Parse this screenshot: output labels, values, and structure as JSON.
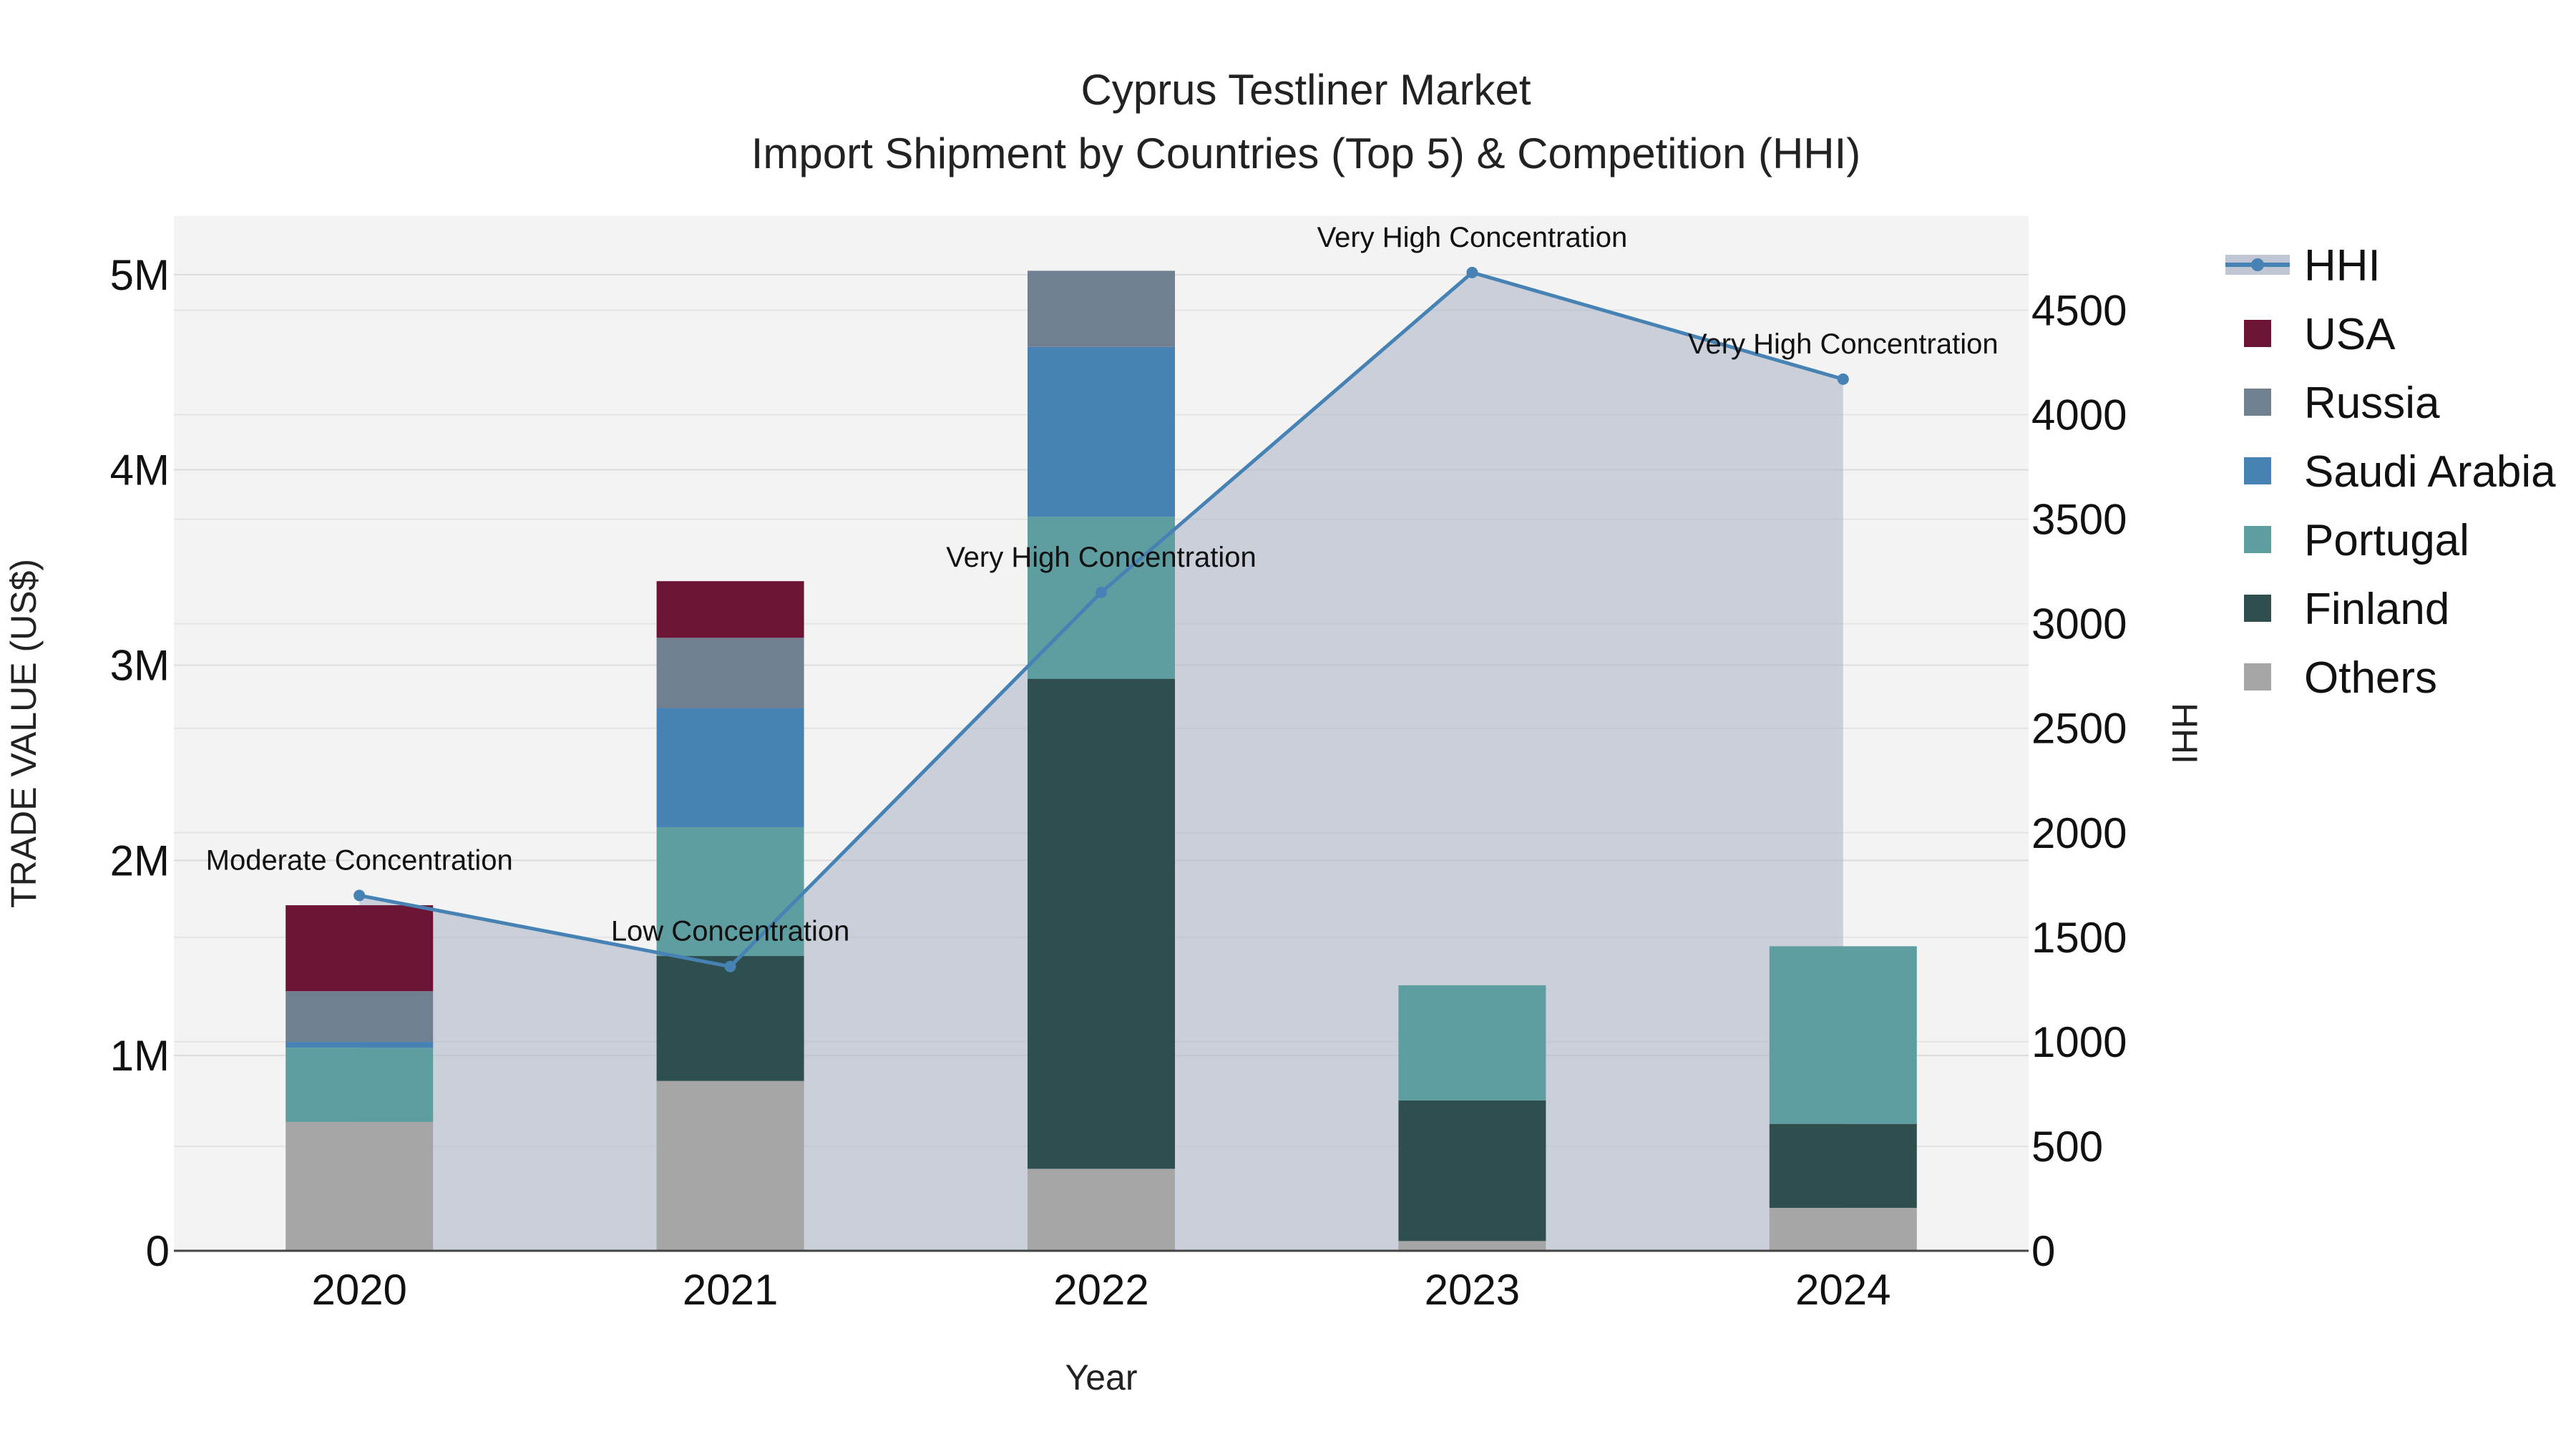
{
  "chart_data": {
    "type": "bar",
    "title": "Cyprus Testliner Market",
    "subtitle": "Import Shipment by Countries (Top 5) & Competition (HHI)",
    "xlabel": "Year",
    "ylabel": "TRADE VALUE (US$)",
    "y2label": "HHI",
    "categories": [
      "2020",
      "2021",
      "2022",
      "2023",
      "2024"
    ],
    "ylim": [
      0,
      5300000
    ],
    "y2lim": [
      0,
      4950
    ],
    "y_ticks": [
      0,
      1000000,
      2000000,
      3000000,
      4000000,
      5000000
    ],
    "y_tick_labels": [
      "0",
      "1M",
      "2M",
      "3M",
      "4M",
      "5M"
    ],
    "y2_ticks": [
      0,
      500,
      1000,
      1500,
      2000,
      2500,
      3000,
      3500,
      4000,
      4500
    ],
    "y2_tick_labels": [
      "0",
      "500",
      "1000",
      "1500",
      "2000",
      "2500",
      "3000",
      "3500",
      "4000",
      "4500"
    ],
    "grid": true,
    "legend_position": "right",
    "series": [
      {
        "name": "Others",
        "color": "#a6a6a6",
        "values": [
          660000,
          870000,
          420000,
          50000,
          220000
        ]
      },
      {
        "name": "Finland",
        "color": "#2f4f4f",
        "values": [
          0,
          640000,
          2510000,
          720000,
          430000
        ]
      },
      {
        "name": "Portugal",
        "color": "#5f9ea0",
        "values": [
          380000,
          660000,
          830000,
          590000,
          910000
        ]
      },
      {
        "name": "Saudi Arabia",
        "color": "#4682b4",
        "values": [
          30000,
          610000,
          870000,
          0,
          0
        ]
      },
      {
        "name": "Russia",
        "color": "#708090",
        "values": [
          260000,
          360000,
          390000,
          0,
          0
        ]
      },
      {
        "name": "USA",
        "color": "#6b1435",
        "values": [
          440000,
          290000,
          0,
          0,
          0
        ]
      }
    ],
    "hhi": {
      "name": "HHI",
      "color": "#4682b4",
      "fill_color": "#b0b8c8",
      "values": [
        1700,
        1360,
        3150,
        4680,
        4170
      ],
      "annotations": [
        "Moderate Concentration",
        "Low Concentration",
        "Very High Concentration",
        "Very High Concentration",
        "Very High Concentration"
      ]
    },
    "legend_order": [
      "HHI",
      "USA",
      "Russia",
      "Saudi Arabia",
      "Portugal",
      "Finland",
      "Others"
    ]
  }
}
